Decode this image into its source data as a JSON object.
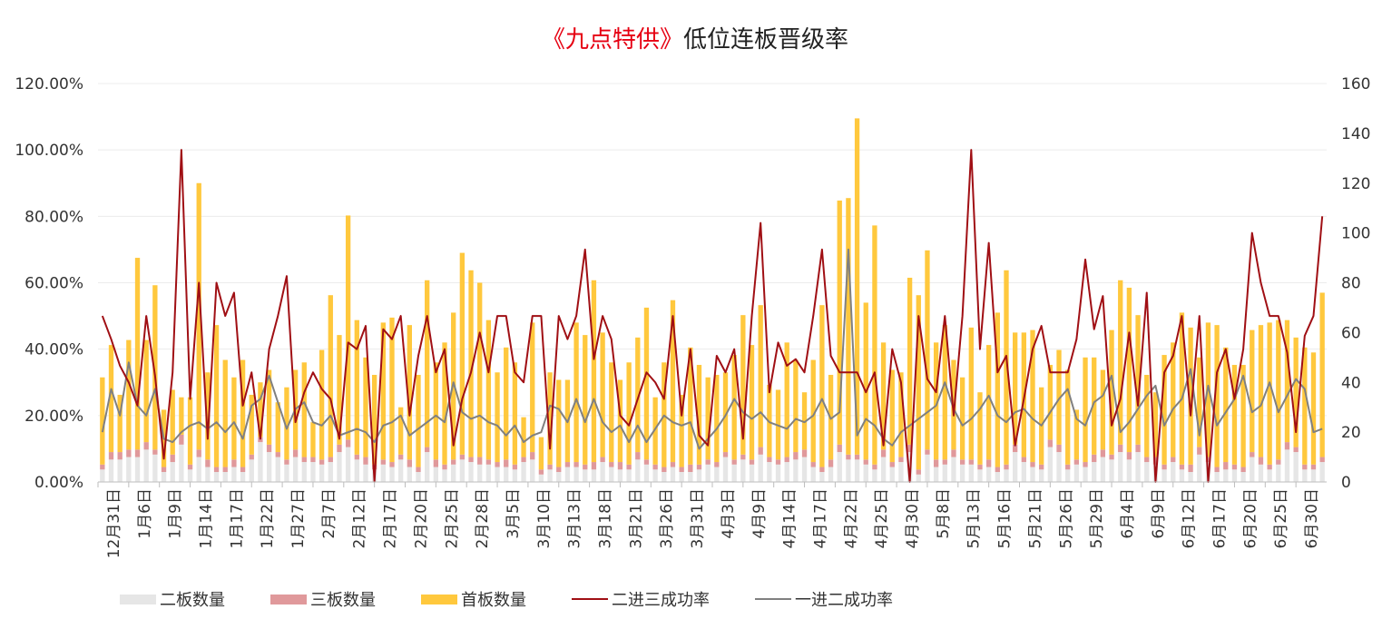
{
  "chart_data": {
    "type": "bar+line",
    "title_red": "《九点特供》",
    "title_black": "低位连板晋级率",
    "left_axis": {
      "ticks": [
        "0.00%",
        "20.00%",
        "40.00%",
        "60.00%",
        "80.00%",
        "100.00%",
        "120.00%"
      ],
      "range": [
        0,
        1.2
      ]
    },
    "right_axis": {
      "ticks": [
        "0",
        "20",
        "40",
        "60",
        "80",
        "100",
        "120",
        "140",
        "160"
      ],
      "range": [
        0,
        160
      ]
    },
    "x_tick_labels": [
      "12月31日",
      "1月6日",
      "1月9日",
      "1月14日",
      "1月17日",
      "1月22日",
      "1月27日",
      "2月7日",
      "2月12日",
      "2月17日",
      "2月20日",
      "2月25日",
      "2月28日",
      "3月5日",
      "3月10日",
      "3月13日",
      "3月18日",
      "3月21日",
      "3月26日",
      "3月31日",
      "4月3日",
      "4月9日",
      "4月14日",
      "4月17日",
      "4月22日",
      "4月25日",
      "4月30日",
      "5月8日",
      "5月13日",
      "5月16日",
      "5月21日",
      "5月26日",
      "5月29日",
      "6月4日",
      "6月9日",
      "6月12日",
      "6月17日",
      "6月20日",
      "6月25日",
      "6月30日"
    ],
    "legend": [
      "二板数量",
      "三板数量",
      "首板数量",
      "二进三成功率",
      "一进二成功率"
    ],
    "colors": {
      "second": "#e6e6e6",
      "third": "#e0999b",
      "first": "#ffc83d",
      "line_2to3": "#a00f14",
      "line_1to2": "#808080"
    },
    "series": [
      {
        "name": "二板数量",
        "values": [
          5,
          9,
          9,
          10,
          10,
          13,
          11,
          4,
          8,
          15,
          5,
          10,
          6,
          4,
          4,
          6,
          4,
          9,
          16,
          12,
          10,
          7,
          10,
          8,
          8,
          7,
          8,
          12,
          14,
          9,
          7,
          5,
          7,
          6,
          9,
          6,
          4,
          12,
          6,
          5,
          7,
          9,
          8,
          7,
          7,
          6,
          6,
          5,
          8,
          9,
          3,
          5,
          4,
          6,
          6,
          5,
          5,
          8,
          6,
          5,
          5,
          9,
          7,
          5,
          4,
          6,
          4,
          4,
          5,
          7,
          6,
          10,
          7,
          9,
          7,
          11,
          8,
          7,
          8,
          9,
          10,
          6,
          4,
          6,
          12,
          9,
          9,
          7,
          5,
          10,
          6,
          8,
          12,
          3,
          11,
          6,
          7,
          10,
          7,
          7,
          5,
          6,
          4,
          5,
          12,
          8,
          6,
          5,
          14,
          12,
          5,
          7,
          6,
          8,
          10,
          9,
          12,
          9,
          12,
          8,
          7,
          5,
          8,
          5,
          4,
          11,
          8,
          4,
          5,
          5,
          4,
          10,
          7,
          5,
          7,
          13,
          12,
          5,
          5,
          8
        ]
      },
      {
        "name": "三板数量",
        "values": [
          2,
          3,
          3,
          3,
          3,
          3,
          2,
          2,
          3,
          4,
          2,
          3,
          3,
          2,
          2,
          3,
          2,
          2,
          2,
          3,
          2,
          2,
          3,
          2,
          2,
          2,
          2,
          3,
          3,
          2,
          3,
          2,
          2,
          2,
          2,
          3,
          2,
          2,
          3,
          2,
          2,
          2,
          2,
          3,
          2,
          2,
          3,
          2,
          2,
          3,
          2,
          2,
          2,
          2,
          2,
          2,
          3,
          2,
          2,
          3,
          2,
          3,
          2,
          2,
          2,
          2,
          2,
          3,
          2,
          2,
          2,
          2,
          2,
          2,
          2,
          3,
          2,
          2,
          2,
          3,
          3,
          2,
          2,
          3,
          3,
          2,
          2,
          2,
          2,
          3,
          2,
          2,
          3,
          2,
          2,
          3,
          2,
          3,
          2,
          2,
          2,
          3,
          2,
          2,
          3,
          2,
          2,
          2,
          3,
          3,
          2,
          2,
          2,
          3,
          3,
          2,
          3,
          3,
          3,
          2,
          3,
          2,
          2,
          2,
          3,
          3,
          2,
          2,
          3,
          2,
          2,
          2,
          3,
          2,
          2,
          3,
          2,
          2,
          2,
          2
        ]
      },
      {
        "name": "首板数量",
        "values": [
          35,
          43,
          23,
          44,
          77,
          41,
          66,
          23,
          26,
          15,
          27,
          107,
          35,
          57,
          43,
          33,
          43,
          24,
          22,
          30,
          20,
          29,
          32,
          38,
          14,
          44,
          65,
          44,
          90,
          54,
          40,
          36,
          55,
          58,
          19,
          54,
          37,
          67,
          39,
          49,
          59,
          81,
          75,
          70,
          56,
          36,
          45,
          41,
          16,
          52,
          13,
          37,
          35,
          33,
          56,
          52,
          73,
          50,
          40,
          33,
          41,
          46,
          61,
          27,
          42,
          65,
          29,
          47,
          40,
          33,
          35,
          32,
          42,
          56,
          46,
          57,
          29,
          28,
          46,
          37,
          23,
          41,
          65,
          34,
          98,
          103,
          135,
          63,
          96,
          43,
          37,
          34,
          67,
          70,
          80,
          47,
          54,
          36,
          33,
          53,
          29,
          46,
          62,
          78,
          45,
          50,
          53,
          31,
          30,
          38,
          38,
          20,
          42,
          39,
          32,
          50,
          66,
          66,
          52,
          33,
          26,
          44,
          46,
          61,
          55,
          36,
          54,
          57,
          46,
          40,
          41,
          49,
          53,
          57,
          56,
          49,
          44,
          47,
          45,
          66
        ]
      },
      {
        "name": "二进三成功率",
        "values": [
          0.5,
          0.43,
          0.35,
          0.3,
          0.23,
          0.5,
          0.32,
          0.07,
          0.33,
          1.0,
          0.25,
          0.6,
          0.13,
          0.6,
          0.5,
          0.57,
          0.23,
          0.33,
          0.13,
          0.4,
          0.5,
          0.62,
          0.18,
          0.27,
          0.33,
          0.28,
          0.25,
          0.13,
          0.42,
          0.4,
          0.47,
          0.0,
          0.46,
          0.43,
          0.5,
          0.2,
          0.38,
          0.5,
          0.33,
          0.4,
          0.11,
          0.25,
          0.33,
          0.45,
          0.33,
          0.5,
          0.5,
          0.33,
          0.3,
          0.5,
          0.5,
          0.1,
          0.5,
          0.43,
          0.5,
          0.7,
          0.37,
          0.5,
          0.43,
          0.2,
          0.17,
          0.25,
          0.33,
          0.3,
          0.25,
          0.5,
          0.2,
          0.4,
          0.14,
          0.11,
          0.38,
          0.33,
          0.4,
          0.13,
          0.5,
          0.78,
          0.27,
          0.42,
          0.35,
          0.37,
          0.33,
          0.5,
          0.7,
          0.38,
          0.33,
          0.33,
          0.33,
          0.27,
          0.33,
          0.11,
          0.4,
          0.3,
          0.0,
          0.5,
          0.31,
          0.27,
          0.5,
          0.2,
          0.5,
          1.0,
          0.4,
          0.72,
          0.33,
          0.38,
          0.11,
          0.25,
          0.4,
          0.47,
          0.33,
          0.33,
          0.33,
          0.43,
          0.67,
          0.46,
          0.56,
          0.17,
          0.25,
          0.45,
          0.23,
          0.57,
          0.0,
          0.33,
          0.38,
          0.5,
          0.2,
          0.5,
          0.0,
          0.33,
          0.4,
          0.25,
          0.4,
          0.75,
          0.6,
          0.5,
          0.5,
          0.39,
          0.15,
          0.44,
          0.5,
          0.8
        ]
      },
      {
        "name": "一进二成功率",
        "values": [
          0.15,
          0.28,
          0.2,
          0.36,
          0.23,
          0.2,
          0.28,
          0.13,
          0.12,
          0.15,
          0.17,
          0.18,
          0.16,
          0.18,
          0.15,
          0.18,
          0.13,
          0.23,
          0.25,
          0.32,
          0.24,
          0.16,
          0.22,
          0.24,
          0.18,
          0.17,
          0.2,
          0.14,
          0.15,
          0.16,
          0.15,
          0.12,
          0.17,
          0.18,
          0.2,
          0.14,
          0.16,
          0.18,
          0.2,
          0.18,
          0.3,
          0.21,
          0.19,
          0.2,
          0.18,
          0.17,
          0.14,
          0.17,
          0.12,
          0.14,
          0.15,
          0.23,
          0.22,
          0.18,
          0.25,
          0.18,
          0.25,
          0.18,
          0.15,
          0.17,
          0.12,
          0.17,
          0.12,
          0.16,
          0.2,
          0.18,
          0.17,
          0.18,
          0.1,
          0.13,
          0.16,
          0.2,
          0.25,
          0.21,
          0.19,
          0.21,
          0.18,
          0.17,
          0.16,
          0.19,
          0.18,
          0.2,
          0.25,
          0.19,
          0.21,
          0.7,
          0.14,
          0.19,
          0.17,
          0.13,
          0.11,
          0.15,
          0.17,
          0.19,
          0.21,
          0.23,
          0.3,
          0.22,
          0.17,
          0.19,
          0.22,
          0.26,
          0.2,
          0.18,
          0.21,
          0.22,
          0.19,
          0.17,
          0.21,
          0.25,
          0.28,
          0.19,
          0.17,
          0.24,
          0.26,
          0.32,
          0.15,
          0.18,
          0.22,
          0.26,
          0.29,
          0.17,
          0.22,
          0.25,
          0.34,
          0.14,
          0.29,
          0.17,
          0.21,
          0.25,
          0.32,
          0.21,
          0.23,
          0.3,
          0.21,
          0.26,
          0.31,
          0.28,
          0.15,
          0.16
        ]
      }
    ]
  }
}
